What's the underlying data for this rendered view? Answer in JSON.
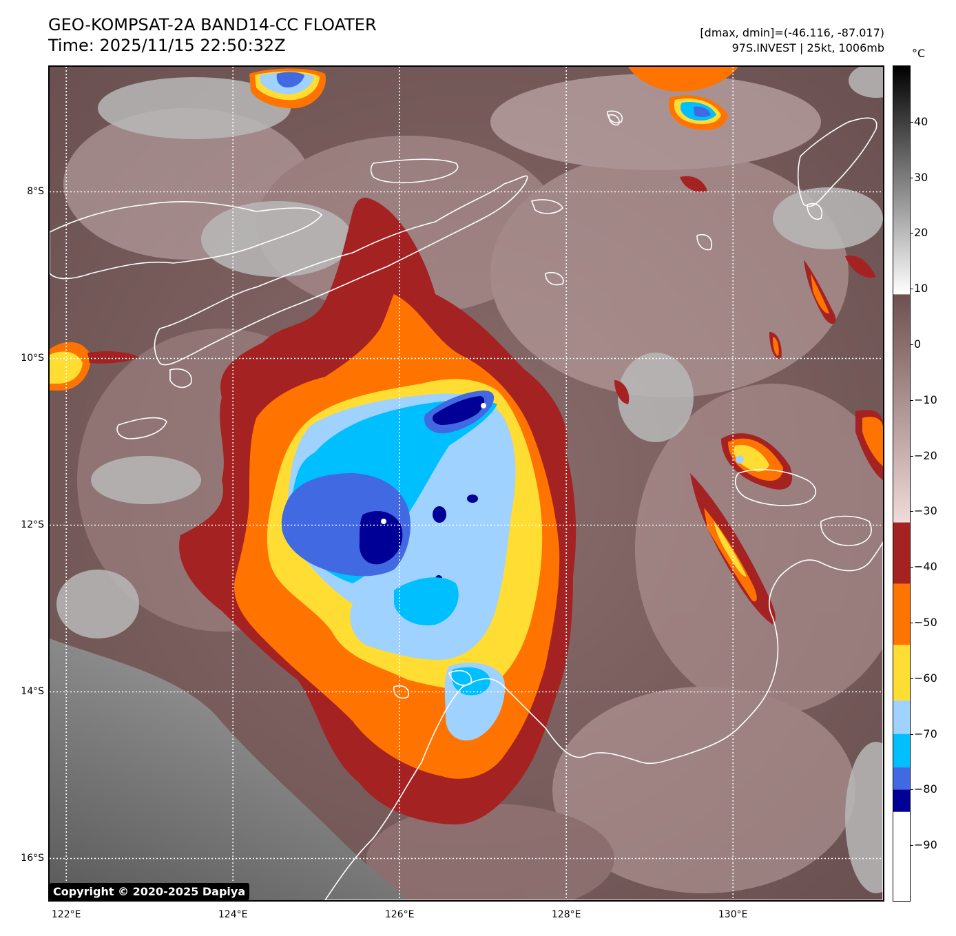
{
  "header": {
    "title_line1": "GEO-KOMPSAT-2A BAND14-CC FLOATER",
    "title_line2": "Time: 2025/11/15 22:50:32Z",
    "info_line1": "[dmax, dmin]=(-46.116, -87.017)",
    "info_line2": "97S.INVEST | 25kt, 1006mb"
  },
  "map": {
    "lon_range": [
      121.8,
      131.8
    ],
    "lat_range": [
      -16.5,
      -6.5
    ],
    "lat_ticks": [
      {
        "value": -8,
        "label": "8°S"
      },
      {
        "value": -10,
        "label": "10°S"
      },
      {
        "value": -12,
        "label": "12°S"
      },
      {
        "value": -14,
        "label": "14°S"
      },
      {
        "value": -16,
        "label": "16°S"
      }
    ],
    "lon_ticks": [
      {
        "value": 122,
        "label": "122°E"
      },
      {
        "value": 124,
        "label": "124°E"
      },
      {
        "value": 126,
        "label": "126°E"
      },
      {
        "value": 128,
        "label": "128°E"
      },
      {
        "value": 130,
        "label": "130°E"
      }
    ],
    "storm_center": {
      "lon": 125.9,
      "lat": -11.9
    },
    "copyright": "Copyright © 2020-2025 Dapiya"
  },
  "colorbar": {
    "unit": "°C",
    "range": [
      -100,
      50
    ],
    "ticks": [
      {
        "value": 40,
        "label": "40"
      },
      {
        "value": 30,
        "label": "30"
      },
      {
        "value": 20,
        "label": "20"
      },
      {
        "value": 10,
        "label": "10"
      },
      {
        "value": 0,
        "label": "0"
      },
      {
        "value": -10,
        "label": "−10"
      },
      {
        "value": -20,
        "label": "−20"
      },
      {
        "value": -30,
        "label": "−30"
      },
      {
        "value": -40,
        "label": "−40"
      },
      {
        "value": -50,
        "label": "−50"
      },
      {
        "value": -60,
        "label": "−60"
      },
      {
        "value": -70,
        "label": "−70"
      },
      {
        "value": -80,
        "label": "−80"
      },
      {
        "value": -90,
        "label": "−90"
      }
    ],
    "bands": [
      {
        "from": -100,
        "to": -84,
        "color": "#ffffff"
      },
      {
        "from": -84,
        "to": -80,
        "color": "#000096"
      },
      {
        "from": -80,
        "to": -76,
        "color": "#4169e1"
      },
      {
        "from": -76,
        "to": -70,
        "color": "#00bfff"
      },
      {
        "from": -70,
        "to": -64,
        "color": "#a0d2ff"
      },
      {
        "from": -64,
        "to": -54,
        "color": "#ffdd33"
      },
      {
        "from": -54,
        "to": -43,
        "color": "#ff7300"
      },
      {
        "from": -43,
        "to": -32,
        "color": "#a52222"
      }
    ],
    "gradients": [
      {
        "from": -32,
        "to": 9,
        "top": "#6e5050",
        "bottom": "#f0dada"
      },
      {
        "from": 9,
        "to": 50,
        "top": "#000000",
        "bottom": "#ffffff"
      }
    ]
  },
  "colors": {
    "land_outline": "#ffffff",
    "grid": "#ffffff",
    "cold_cloud_white": "#f4f4f4",
    "gray_cloud": "#9a9a9a"
  }
}
